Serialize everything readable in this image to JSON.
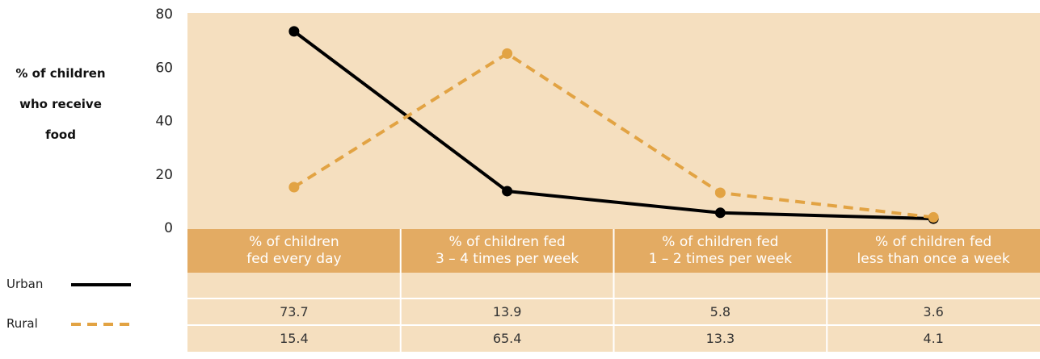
{
  "chart_data": {
    "type": "line",
    "y_label": "% of children\nwho receive\nfood",
    "categories": [
      "% of children\nfed every day",
      "% of children fed\n3 –  4 times per week",
      "% of children fed\n1 –  2 times per week",
      "% of children fed\nless than once a week"
    ],
    "series": [
      {
        "name": "Urban",
        "color": "#000000",
        "line_style": "solid",
        "values": [
          73.7,
          13.9,
          5.8,
          3.6
        ]
      },
      {
        "name": "Rural",
        "color": "#e2a343",
        "line_style": "dashed",
        "values": [
          15.4,
          65.4,
          13.3,
          4.1
        ]
      }
    ],
    "ylim": [
      0,
      80
    ],
    "yticks": [
      0,
      20,
      40,
      60,
      80
    ],
    "grid": false
  }
}
